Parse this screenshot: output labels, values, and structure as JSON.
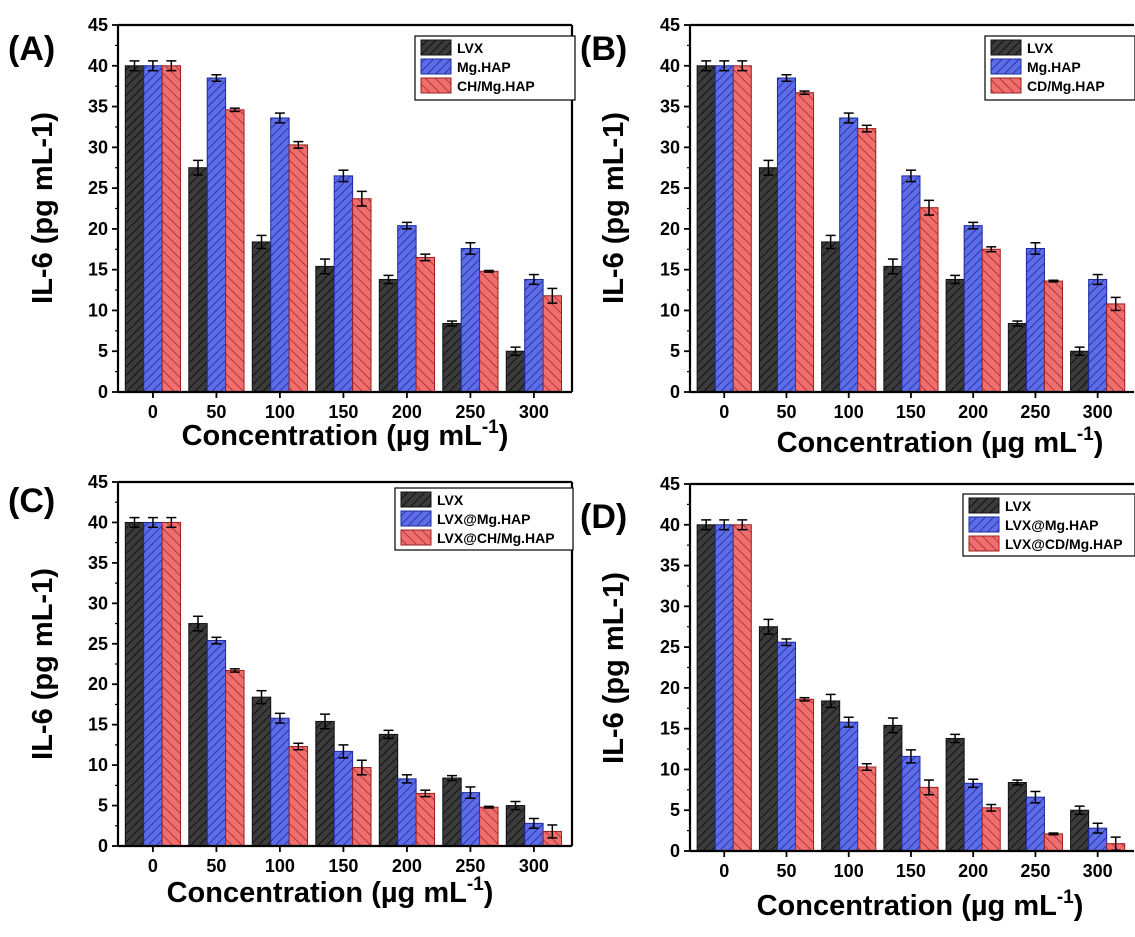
{
  "colors": {
    "LVX": "#3b3b3b",
    "Mg": "#5d6de8",
    "Composite": "#ef6f6f",
    "axis": "#000000"
  },
  "chart_data": [
    {
      "panel_label": "(A)",
      "type": "bar",
      "xlabel_main": "Concentration (µg mL",
      "xlabel_sup": "-1",
      "xlabel_close": ")",
      "ylabel": "IL-6 (pg mL-1)",
      "ylim": [
        0,
        45
      ],
      "yticks": [
        "0",
        "5",
        "10",
        "15",
        "20",
        "25",
        "30",
        "35",
        "40",
        "45"
      ],
      "categories": [
        "0",
        "50",
        "100",
        "150",
        "200",
        "250",
        "300"
      ],
      "legend_position": "top-right",
      "series": [
        {
          "name": "LVX",
          "color_key": "LVX",
          "values": [
            40,
            27.5,
            18.4,
            15.4,
            13.8,
            8.4,
            5
          ],
          "errors": [
            0.6,
            0.9,
            0.8,
            0.9,
            0.5,
            0.3,
            0.5
          ]
        },
        {
          "name": "Mg.HAP",
          "color_key": "Mg",
          "values": [
            40,
            38.5,
            33.6,
            26.5,
            20.4,
            17.6,
            13.8
          ],
          "errors": [
            0.6,
            0.4,
            0.6,
            0.7,
            0.4,
            0.7,
            0.6
          ]
        },
        {
          "name": "CH/Mg.HAP",
          "color_key": "Composite",
          "values": [
            40,
            34.6,
            30.3,
            23.7,
            16.5,
            14.8,
            11.8
          ],
          "errors": [
            0.6,
            0.2,
            0.4,
            0.9,
            0.4,
            0.1,
            0.9
          ]
        }
      ]
    },
    {
      "panel_label": "(B)",
      "type": "bar",
      "xlabel_main": "Concentration (µg mL",
      "xlabel_sup": "-1",
      "xlabel_close": ")",
      "ylabel": "IL-6 (pg mL-1)",
      "ylim": [
        0,
        45
      ],
      "yticks": [
        "0",
        "5",
        "10",
        "15",
        "20",
        "25",
        "30",
        "35",
        "40",
        "45"
      ],
      "categories": [
        "0",
        "50",
        "100",
        "150",
        "200",
        "250",
        "300"
      ],
      "legend_position": "top-right",
      "series": [
        {
          "name": "LVX",
          "color_key": "LVX",
          "values": [
            40,
            27.5,
            18.4,
            15.4,
            13.8,
            8.4,
            5
          ],
          "errors": [
            0.6,
            0.9,
            0.8,
            0.9,
            0.5,
            0.3,
            0.5
          ]
        },
        {
          "name": "Mg.HAP",
          "color_key": "Mg",
          "values": [
            40,
            38.5,
            33.6,
            26.5,
            20.4,
            17.6,
            13.8
          ],
          "errors": [
            0.6,
            0.4,
            0.6,
            0.7,
            0.4,
            0.7,
            0.6
          ]
        },
        {
          "name": "CD/Mg.HAP",
          "color_key": "Composite",
          "values": [
            40,
            36.7,
            32.3,
            22.6,
            17.5,
            13.6,
            10.8
          ],
          "errors": [
            0.6,
            0.2,
            0.4,
            0.9,
            0.3,
            0.1,
            0.8
          ]
        }
      ]
    },
    {
      "panel_label": "(C)",
      "type": "bar",
      "xlabel_main": "Concentration (µg mL",
      "xlabel_sup": "-1",
      "xlabel_close": ")",
      "ylabel": "IL-6 (pg mL-1)",
      "ylim": [
        0,
        45
      ],
      "yticks": [
        "0",
        "5",
        "10",
        "15",
        "20",
        "25",
        "30",
        "35",
        "40",
        "45"
      ],
      "categories": [
        "0",
        "50",
        "100",
        "150",
        "200",
        "250",
        "300"
      ],
      "legend_position": "top-right",
      "series": [
        {
          "name": "LVX",
          "color_key": "LVX",
          "values": [
            40,
            27.5,
            18.4,
            15.4,
            13.8,
            8.4,
            5
          ],
          "errors": [
            0.6,
            0.9,
            0.8,
            0.9,
            0.5,
            0.3,
            0.5
          ]
        },
        {
          "name": "LVX@Mg.HAP",
          "color_key": "Mg",
          "values": [
            40,
            25.4,
            15.8,
            11.7,
            8.3,
            6.6,
            2.8
          ],
          "errors": [
            0.6,
            0.4,
            0.6,
            0.8,
            0.5,
            0.7,
            0.6
          ]
        },
        {
          "name": "LVX@CH/Mg.HAP",
          "color_key": "Composite",
          "values": [
            40,
            21.7,
            12.3,
            9.7,
            6.5,
            4.8,
            1.8
          ],
          "errors": [
            0.6,
            0.2,
            0.4,
            0.9,
            0.4,
            0.1,
            0.8
          ]
        }
      ]
    },
    {
      "panel_label": "(D)",
      "type": "bar",
      "xlabel_main": "Concentration (µg mL",
      "xlabel_sup": "-1",
      "xlabel_close": ")",
      "ylabel": "IL-6 (pg mL-1)",
      "ylim": [
        0,
        45
      ],
      "yticks": [
        "0",
        "5",
        "10",
        "15",
        "20",
        "25",
        "30",
        "35",
        "40",
        "45"
      ],
      "categories": [
        "0",
        "50",
        "100",
        "150",
        "200",
        "250",
        "300"
      ],
      "legend_position": "top-right",
      "series": [
        {
          "name": "LVX",
          "color_key": "LVX",
          "values": [
            40,
            27.5,
            18.4,
            15.4,
            13.8,
            8.4,
            5
          ],
          "errors": [
            0.6,
            0.9,
            0.8,
            0.9,
            0.5,
            0.3,
            0.5
          ]
        },
        {
          "name": "LVX@Mg.HAP",
          "color_key": "Mg",
          "values": [
            40,
            25.6,
            15.8,
            11.6,
            8.3,
            6.6,
            2.8
          ],
          "errors": [
            0.6,
            0.4,
            0.6,
            0.8,
            0.5,
            0.7,
            0.6
          ]
        },
        {
          "name": "LVX@CD/Mg.HAP",
          "color_key": "Composite",
          "values": [
            40,
            18.6,
            10.3,
            7.8,
            5.3,
            2.1,
            0.9
          ],
          "errors": [
            0.6,
            0.2,
            0.4,
            0.9,
            0.4,
            0.1,
            0.8
          ]
        }
      ]
    }
  ]
}
